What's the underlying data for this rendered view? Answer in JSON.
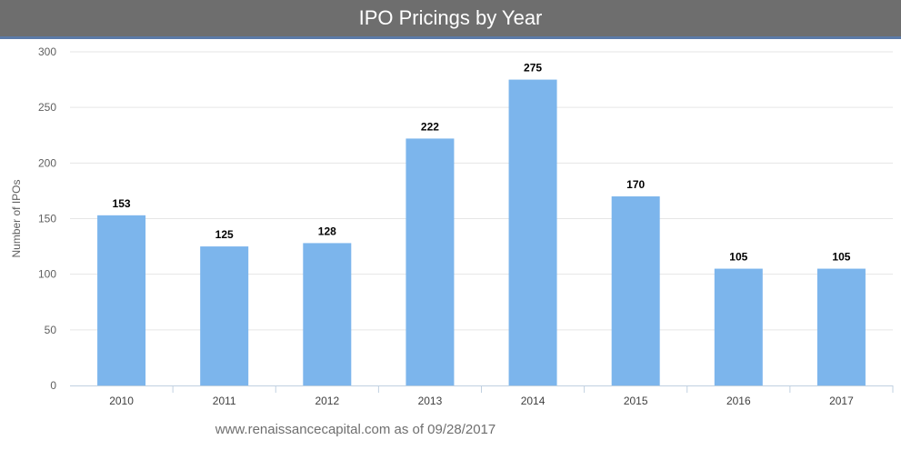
{
  "header": {
    "title": "IPO Pricings by Year"
  },
  "footnote": "www.renaissancecapital.com as of 09/28/2017",
  "chart_data": {
    "type": "bar",
    "title": "IPO Pricings by Year",
    "xlabel": "",
    "ylabel": "Number of IPOs",
    "categories": [
      "2010",
      "2011",
      "2012",
      "2013",
      "2014",
      "2015",
      "2016",
      "2017"
    ],
    "values": [
      153,
      125,
      128,
      222,
      275,
      170,
      105,
      105
    ],
    "ylim": [
      0,
      300
    ],
    "yticks": [
      0,
      50,
      100,
      150,
      200,
      250,
      300
    ],
    "grid": true,
    "legend": "none",
    "bar_color": "#7cb5ec"
  }
}
